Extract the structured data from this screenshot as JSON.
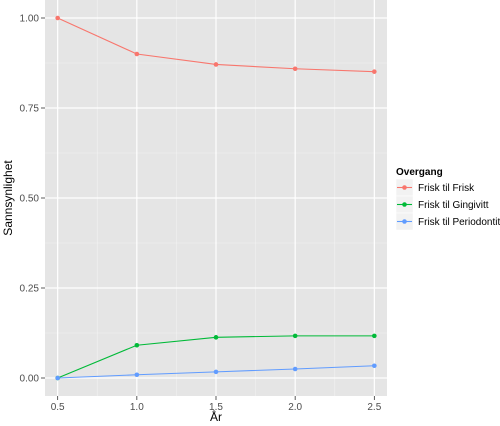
{
  "chart_data": {
    "type": "line",
    "xlabel": "År",
    "ylabel": "Sannsynlighet",
    "x": [
      0.5,
      1.0,
      1.5,
      2.0,
      2.5
    ],
    "x_ticks": [
      "0.5",
      "1.0",
      "1.5",
      "2.0",
      "2.5"
    ],
    "y_ticks": [
      "0.00",
      "0.25",
      "0.50",
      "0.75",
      "1.00"
    ],
    "xlim": [
      0.42,
      2.58
    ],
    "ylim": [
      -0.05,
      1.05
    ],
    "grid": true,
    "legend": {
      "title": "Overgang",
      "position": "right"
    },
    "series": [
      {
        "name": "Frisk til Frisk",
        "color": "#F8766D",
        "values": [
          1.0,
          0.9,
          0.871,
          0.859,
          0.851
        ]
      },
      {
        "name": "Frisk til Gingivitt",
        "color": "#00BA38",
        "values": [
          0.0,
          0.091,
          0.113,
          0.117,
          0.117
        ]
      },
      {
        "name": "Frisk til Periodontitt",
        "color": "#619CFF",
        "values": [
          0.0,
          0.009,
          0.017,
          0.025,
          0.034
        ]
      }
    ]
  }
}
